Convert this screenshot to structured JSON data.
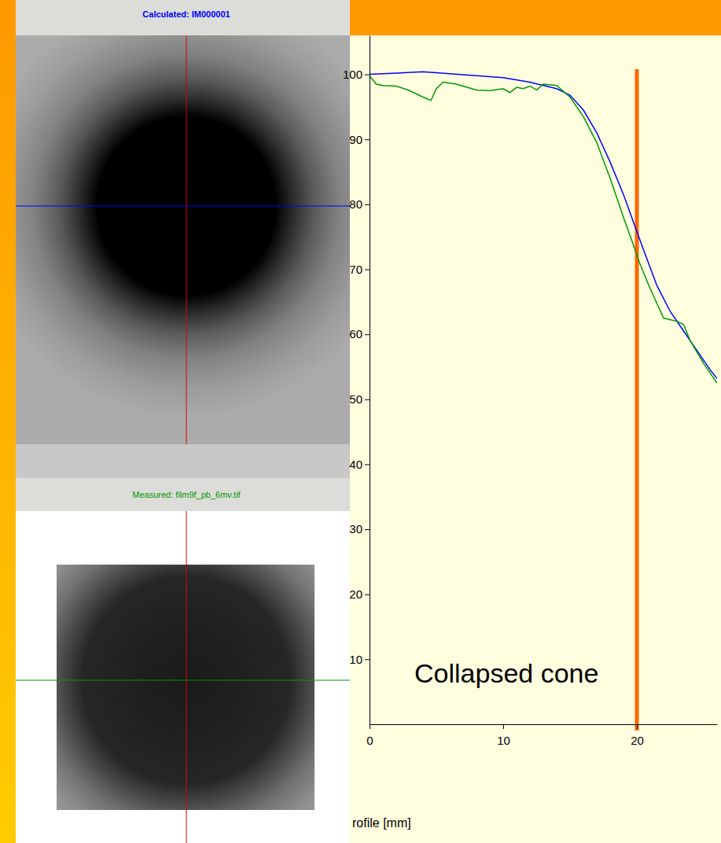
{
  "chart_data": {
    "type": "line",
    "x_label": "rofile [mm]",
    "xlim": [
      0,
      26
    ],
    "ylim": [
      0,
      106
    ],
    "xticks": [
      0,
      10,
      20
    ],
    "yticks": [
      10,
      20,
      30,
      40,
      50,
      60,
      70,
      80,
      90,
      100
    ],
    "grid": false,
    "series": [
      {
        "name": "Calculated: IM000001",
        "color": "#0000ff",
        "line_style": "solid",
        "x": [
          0,
          2,
          4,
          6,
          8,
          10,
          12,
          14,
          15,
          16,
          17,
          18,
          19,
          19.7,
          20.5,
          21.5,
          22.5,
          23.5,
          24.5,
          25.5,
          26
        ],
        "values": [
          100,
          100.2,
          100.4,
          100.1,
          99.8,
          99.5,
          98.8,
          97.8,
          96.8,
          94.5,
          91,
          86.5,
          81.5,
          77.5,
          73,
          67.5,
          63.5,
          60.5,
          57.5,
          54.5,
          53.2
        ]
      },
      {
        "name": "Measured: film9f_pb_6mv.tif",
        "color": "#009900",
        "line_style": "solid",
        "x": [
          0,
          0.5,
          1,
          2,
          3,
          4,
          4.6,
          5,
          5.5,
          6.5,
          7,
          8,
          9,
          10,
          10.5,
          11,
          11.5,
          12,
          12.5,
          13,
          14,
          15,
          16,
          17,
          18,
          19,
          19.7,
          20.2,
          21,
          22,
          23,
          23.5,
          24,
          25,
          26
        ],
        "values": [
          99.8,
          98.5,
          98.3,
          98.2,
          97.5,
          96.5,
          96,
          97.8,
          98.8,
          98.5,
          98.2,
          97.6,
          97.5,
          97.8,
          97.2,
          98,
          97.8,
          98.2,
          97.6,
          98.5,
          98.3,
          96.5,
          93.5,
          89.5,
          84,
          78,
          74,
          71,
          67,
          62.5,
          62,
          61.5,
          59,
          55.5,
          52.5
        ]
      }
    ],
    "annotations": [
      {
        "text": "Collapsed cone",
        "x": 20,
        "color": "#ff6600"
      }
    ]
  }
}
